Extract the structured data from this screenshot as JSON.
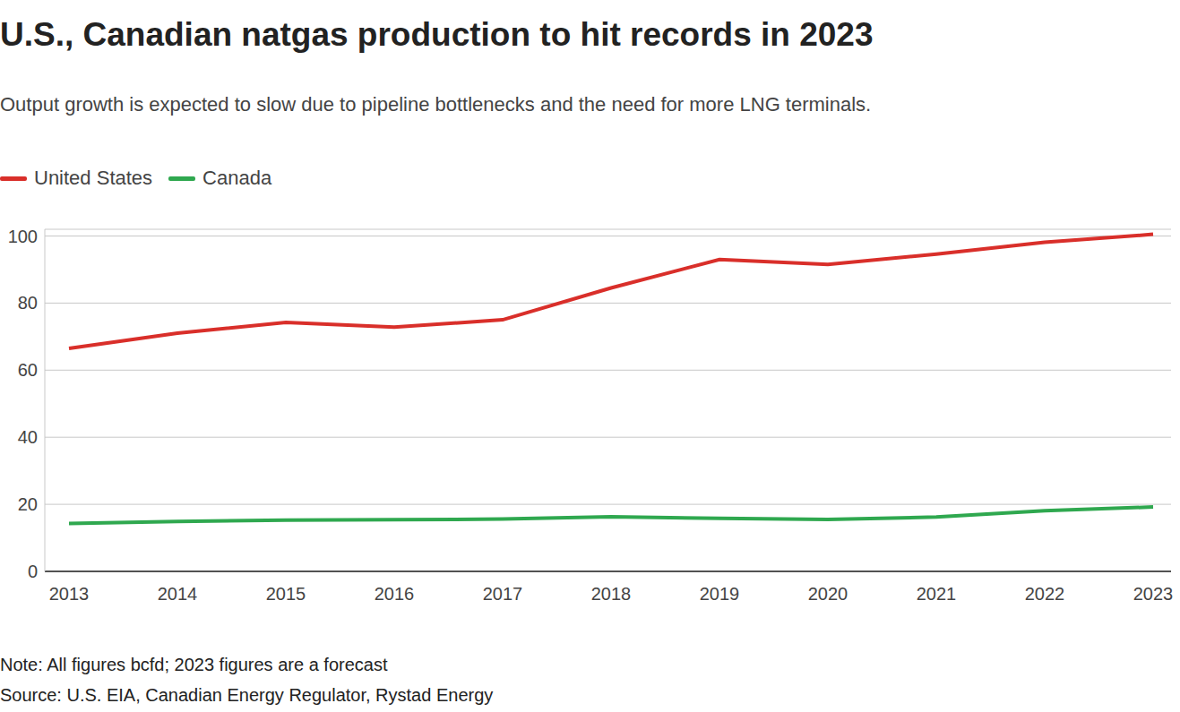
{
  "chart_data": {
    "type": "line",
    "title": "U.S., Canadian natgas production to hit records in 2023",
    "subtitle": "Output growth is expected to slow due to pipeline bottlenecks and the need for more LNG terminals.",
    "categories": [
      "2013",
      "2014",
      "2015",
      "2016",
      "2017",
      "2018",
      "2019",
      "2020",
      "2021",
      "2022",
      "2023"
    ],
    "series": [
      {
        "name": "United States",
        "color": "#d92f2a",
        "values": [
          66.5,
          71,
          74.2,
          72.8,
          75,
          84.5,
          93,
          91.5,
          94.6,
          98.1,
          100.5
        ]
      },
      {
        "name": "Canada",
        "color": "#2fa84f",
        "values": [
          14.3,
          14.9,
          15.3,
          15.4,
          15.6,
          16.3,
          15.8,
          15.5,
          16.2,
          18.1,
          19.2
        ]
      }
    ],
    "ylim": [
      0,
      102
    ],
    "yticks": [
      0,
      20,
      40,
      60,
      80,
      100
    ],
    "grid": true,
    "legend": "top-left",
    "notes": [
      "Note: All figures bcfd; 2023 figures are a forecast",
      "Source: U.S. EIA, Canadian Energy Regulator, Rystad Energy"
    ]
  }
}
